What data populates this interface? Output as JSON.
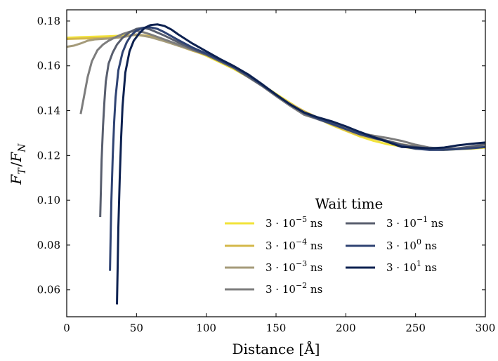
{
  "chart_data": {
    "type": "line",
    "title": "",
    "xlabel": "Distance [Å]",
    "ylabel": "F_T / F_N",
    "xlim": [
      0,
      300
    ],
    "ylim": [
      0.048,
      0.185
    ],
    "xticks": [
      0,
      50,
      100,
      150,
      200,
      250,
      300
    ],
    "yticks": [
      0.06,
      0.08,
      0.1,
      0.12,
      0.14,
      0.16,
      0.18
    ],
    "ytick_labels": [
      "0.06",
      "0.08",
      "0.10",
      "0.12",
      "0.14",
      "0.16",
      "0.18"
    ],
    "grid": false,
    "legend": {
      "title": "Wait time",
      "placement": "lower-right",
      "columns": 2
    },
    "series": [
      {
        "name": "3 · 10^-5 ns",
        "base": "3 · 10",
        "exp": "−5",
        "unit": "ns",
        "color": "#f2e33a",
        "x": [
          0,
          10,
          20,
          30,
          40,
          50,
          60,
          70,
          80,
          90,
          100,
          110,
          120,
          130,
          140,
          150,
          160,
          170,
          180,
          190,
          200,
          210,
          220,
          230,
          240,
          250,
          260,
          270,
          280,
          290,
          300
        ],
        "y": [
          0.1725,
          0.1728,
          0.173,
          0.1732,
          0.1735,
          0.1738,
          0.173,
          0.1715,
          0.1695,
          0.167,
          0.1645,
          0.1615,
          0.1585,
          0.155,
          0.1515,
          0.1475,
          0.1435,
          0.1395,
          0.1365,
          0.1335,
          0.131,
          0.1285,
          0.1265,
          0.125,
          0.124,
          0.123,
          0.1228,
          0.1225,
          0.1228,
          0.123,
          0.1235
        ]
      },
      {
        "name": "3 · 10^-4 ns",
        "base": "3 · 10",
        "exp": "−4",
        "unit": "ns",
        "color": "#d4b84a",
        "x": [
          0,
          10,
          20,
          30,
          40,
          50,
          60,
          70,
          80,
          90,
          100,
          110,
          120,
          130,
          140,
          150,
          160,
          170,
          180,
          190,
          200,
          210,
          220,
          230,
          240,
          250,
          260,
          270,
          280,
          290,
          300
        ],
        "y": [
          0.172,
          0.1722,
          0.1723,
          0.1725,
          0.173,
          0.174,
          0.1732,
          0.1712,
          0.169,
          0.1668,
          0.1648,
          0.162,
          0.159,
          0.1552,
          0.1512,
          0.147,
          0.1432,
          0.1398,
          0.1368,
          0.1338,
          0.1312,
          0.129,
          0.1275,
          0.1262,
          0.1245,
          0.1235,
          0.123,
          0.1228,
          0.123,
          0.1232,
          0.1238
        ]
      },
      {
        "name": "3 · 10^-3 ns",
        "base": "3 · 10",
        "exp": "−3",
        "unit": "ns",
        "color": "#a59b7a",
        "x": [
          0,
          5,
          10,
          15,
          20,
          30,
          40,
          50,
          60,
          70,
          80,
          90,
          100,
          110,
          120,
          130,
          140,
          150,
          160,
          170,
          180,
          190,
          200,
          210,
          220,
          230,
          240,
          250,
          260,
          270,
          280,
          290,
          300
        ],
        "y": [
          0.1685,
          0.169,
          0.17,
          0.1712,
          0.1718,
          0.1722,
          0.1728,
          0.174,
          0.1728,
          0.171,
          0.169,
          0.167,
          0.1652,
          0.1625,
          0.1592,
          0.1555,
          0.1515,
          0.1472,
          0.143,
          0.1392,
          0.1368,
          0.1345,
          0.1318,
          0.1295,
          0.128,
          0.1265,
          0.125,
          0.124,
          0.1232,
          0.1228,
          0.123,
          0.1232,
          0.1238
        ]
      },
      {
        "name": "3 · 10^-2 ns",
        "base": "3 · 10",
        "exp": "−2",
        "unit": "ns",
        "color": "#7d7d7d",
        "x": [
          10,
          12,
          15,
          18,
          22,
          26,
          30,
          35,
          40,
          45,
          50,
          55,
          60,
          70,
          80,
          90,
          100,
          110,
          120,
          130,
          140,
          150,
          160,
          170,
          180,
          190,
          200,
          210,
          220,
          230,
          240,
          250,
          260,
          270,
          280,
          290,
          300
        ],
        "y": [
          0.1385,
          0.145,
          0.155,
          0.162,
          0.167,
          0.1695,
          0.1712,
          0.1728,
          0.1742,
          0.1752,
          0.1755,
          0.175,
          0.174,
          0.1718,
          0.1695,
          0.1672,
          0.165,
          0.162,
          0.159,
          0.155,
          0.151,
          0.1465,
          0.1422,
          0.1382,
          0.1362,
          0.1342,
          0.1322,
          0.13,
          0.1288,
          0.1278,
          0.1265,
          0.1248,
          0.1235,
          0.123,
          0.123,
          0.1235,
          0.124
        ]
      },
      {
        "name": "3 · 10^-1 ns",
        "base": "3 · 10",
        "exp": "−1",
        "unit": "ns",
        "color": "#585e6e",
        "x": [
          24,
          24.5,
          25,
          26,
          27,
          28,
          30,
          33,
          36,
          40,
          45,
          50,
          55,
          60,
          70,
          80,
          90,
          100,
          110,
          120,
          130,
          140,
          150,
          160,
          170,
          180,
          190,
          200,
          210,
          220,
          230,
          240,
          250,
          260,
          270,
          280,
          290,
          300
        ],
        "y": [
          0.0925,
          0.105,
          0.118,
          0.133,
          0.144,
          0.153,
          0.161,
          0.166,
          0.1695,
          0.1725,
          0.175,
          0.1765,
          0.177,
          0.1762,
          0.1735,
          0.1705,
          0.1675,
          0.165,
          0.162,
          0.159,
          0.1552,
          0.1512,
          0.147,
          0.1428,
          0.1388,
          0.1362,
          0.134,
          0.1318,
          0.1298,
          0.1282,
          0.1265,
          0.1248,
          0.1238,
          0.123,
          0.1228,
          0.1232,
          0.124,
          0.125
        ]
      },
      {
        "name": "3 · 10^0 ns",
        "base": "3 · 10",
        "exp": "0",
        "unit": "ns",
        "color": "#2f4373",
        "x": [
          31,
          31.5,
          32,
          33,
          34,
          35,
          37,
          40,
          43,
          46,
          50,
          55,
          60,
          65,
          70,
          80,
          90,
          100,
          110,
          120,
          130,
          140,
          150,
          160,
          170,
          180,
          190,
          200,
          210,
          220,
          230,
          240,
          250,
          260,
          270,
          280,
          290,
          300
        ],
        "y": [
          0.0685,
          0.085,
          0.1,
          0.12,
          0.135,
          0.146,
          0.158,
          0.166,
          0.1705,
          0.1735,
          0.1758,
          0.177,
          0.1772,
          0.1765,
          0.175,
          0.1715,
          0.1682,
          0.1655,
          0.1625,
          0.1595,
          0.1558,
          0.1515,
          0.147,
          0.1428,
          0.1392,
          0.1365,
          0.1342,
          0.1318,
          0.1295,
          0.1278,
          0.1262,
          0.1242,
          0.123,
          0.1225,
          0.1225,
          0.1228,
          0.1232,
          0.1238
        ]
      },
      {
        "name": "3 · 10^1 ns",
        "base": "3 · 10",
        "exp": "1",
        "unit": "ns",
        "color": "#0d2150",
        "x": [
          36,
          36.5,
          37,
          38,
          39,
          40,
          42,
          45,
          48,
          52,
          56,
          60,
          65,
          70,
          75,
          80,
          90,
          100,
          110,
          120,
          130,
          140,
          150,
          160,
          170,
          180,
          190,
          200,
          210,
          220,
          230,
          240,
          250,
          260,
          270,
          280,
          290,
          300
        ],
        "y": [
          0.0535,
          0.07,
          0.088,
          0.11,
          0.128,
          0.142,
          0.157,
          0.1665,
          0.1712,
          0.1745,
          0.177,
          0.1782,
          0.1785,
          0.1778,
          0.1762,
          0.174,
          0.17,
          0.1665,
          0.163,
          0.1598,
          0.1562,
          0.1518,
          0.1472,
          0.1428,
          0.1392,
          0.137,
          0.1352,
          0.133,
          0.1305,
          0.1282,
          0.126,
          0.1238,
          0.1235,
          0.1232,
          0.1235,
          0.1245,
          0.1252,
          0.1258
        ]
      }
    ]
  }
}
